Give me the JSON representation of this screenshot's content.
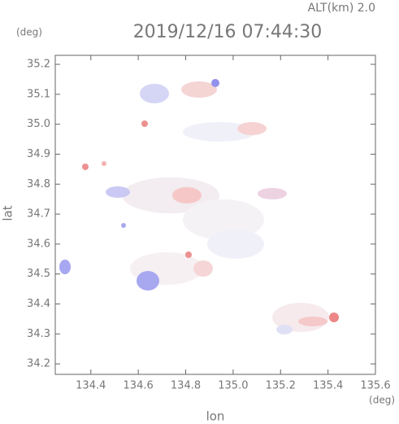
{
  "chart_data": {
    "type": "map",
    "title": "2019/12/16 07:44:30",
    "annotation": "ALT(km) 2.0",
    "y_unit": "(deg)",
    "x_unit": "(deg)",
    "xlabel": "lon",
    "ylabel": "lat",
    "xlim": [
      134.25,
      135.6
    ],
    "ylim": [
      34.165,
      35.23
    ],
    "xticks": [
      134.4,
      134.6,
      134.8,
      {
        "value": 135,
        "label": "135.0"
      },
      135.2,
      135.4,
      135.6
    ],
    "yticks": [
      34.2,
      34.3,
      34.4,
      34.5,
      34.6,
      34.7,
      34.8,
      34.9,
      {
        "value": 35,
        "label": "35.0"
      },
      35.1,
      35.2
    ]
  }
}
